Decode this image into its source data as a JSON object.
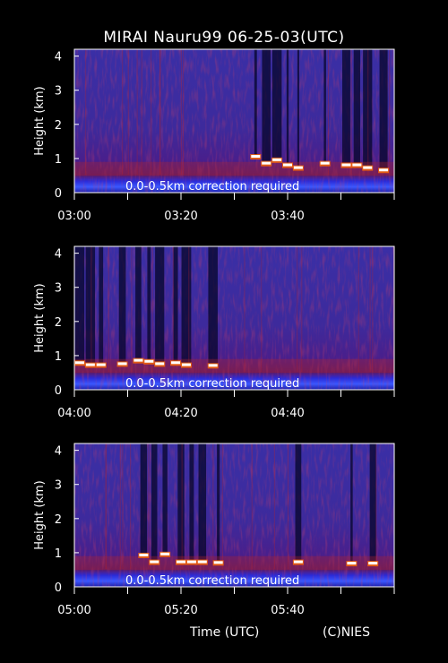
{
  "title": "MIRAI Nauru99 06-25-03(UTC)",
  "footer": {
    "xlabel": "Time (UTC)",
    "credit": "(C)NIES"
  },
  "chart_data": [
    {
      "type": "heatmap",
      "ylabel": "Height (km)",
      "yticks": [
        "0",
        "1",
        "2",
        "3",
        "4"
      ],
      "ylim": [
        0,
        4.2
      ],
      "xticks": [
        "03:00",
        "03:20",
        "03:40"
      ],
      "xlim": [
        "03:00",
        "04:00"
      ],
      "annotation": "0.0-0.5km correction required",
      "cloud_base": [
        {
          "t": 34,
          "h": 1.05
        },
        {
          "t": 36,
          "h": 0.85
        },
        {
          "t": 38,
          "h": 0.95
        },
        {
          "t": 40,
          "h": 0.8
        },
        {
          "t": 42,
          "h": 0.72
        },
        {
          "t": 47,
          "h": 0.85
        },
        {
          "t": 51,
          "h": 0.8
        },
        {
          "t": 53,
          "h": 0.8
        },
        {
          "t": 55,
          "h": 0.72
        },
        {
          "t": 58,
          "h": 0.65
        }
      ]
    },
    {
      "type": "heatmap",
      "ylabel": "Height (km)",
      "yticks": [
        "0",
        "1",
        "2",
        "3",
        "4"
      ],
      "ylim": [
        0,
        4.2
      ],
      "xticks": [
        "04:00",
        "04:20",
        "04:40"
      ],
      "xlim": [
        "04:00",
        "05:00"
      ],
      "annotation": "0.0-0.5km correction required",
      "cloud_base": [
        {
          "t": 1,
          "h": 0.78
        },
        {
          "t": 3,
          "h": 0.72
        },
        {
          "t": 5,
          "h": 0.72
        },
        {
          "t": 9,
          "h": 0.75
        },
        {
          "t": 12,
          "h": 0.85
        },
        {
          "t": 14,
          "h": 0.82
        },
        {
          "t": 16,
          "h": 0.75
        },
        {
          "t": 19,
          "h": 0.78
        },
        {
          "t": 21,
          "h": 0.72
        },
        {
          "t": 26,
          "h": 0.7
        }
      ]
    },
    {
      "type": "heatmap",
      "ylabel": "Height (km)",
      "yticks": [
        "0",
        "1",
        "2",
        "3",
        "4"
      ],
      "ylim": [
        0,
        4.2
      ],
      "xticks": [
        "05:00",
        "05:20",
        "05:40"
      ],
      "xlim": [
        "05:00",
        "06:00"
      ],
      "annotation": "0.0-0.5km correction required",
      "cloud_base": [
        {
          "t": 13,
          "h": 0.92
        },
        {
          "t": 15,
          "h": 0.72
        },
        {
          "t": 17,
          "h": 0.95
        },
        {
          "t": 20,
          "h": 0.72
        },
        {
          "t": 22,
          "h": 0.72
        },
        {
          "t": 24,
          "h": 0.72
        },
        {
          "t": 27,
          "h": 0.7
        },
        {
          "t": 42,
          "h": 0.72
        },
        {
          "t": 52,
          "h": 0.68
        },
        {
          "t": 56,
          "h": 0.68
        }
      ]
    }
  ]
}
